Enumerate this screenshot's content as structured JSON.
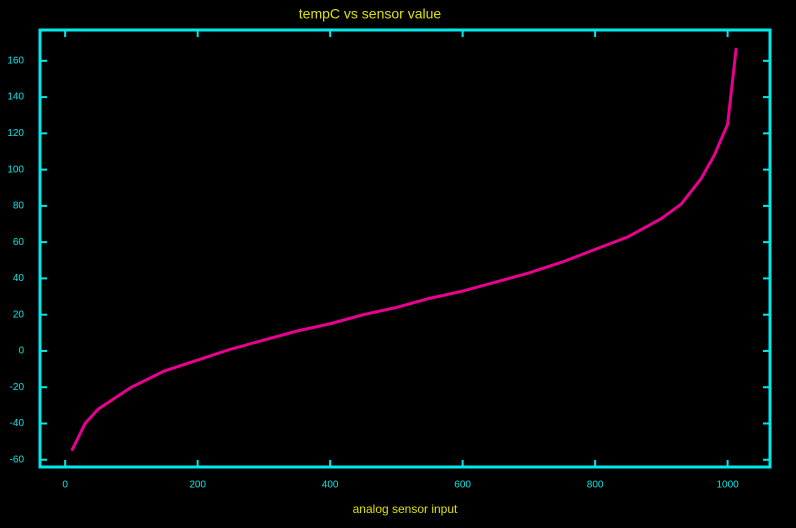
{
  "chart_data": {
    "type": "line",
    "title": "tempC vs sensor value",
    "x_label": "analog sensor input",
    "x": [
      10,
      30,
      50,
      100,
      150,
      200,
      250,
      300,
      350,
      400,
      450,
      500,
      550,
      600,
      650,
      700,
      750,
      800,
      850,
      900,
      930,
      960,
      980,
      1000,
      1013
    ],
    "values": [
      -55,
      -40,
      -32,
      -20,
      -11,
      -5,
      1,
      6,
      11,
      15,
      20,
      24,
      29,
      33,
      38,
      43,
      49,
      56,
      63,
      73,
      81,
      95,
      108,
      125,
      167
    ],
    "color": "#e8008f",
    "axis_color": "#00e8e8",
    "title_color": "#e0e000",
    "background": "#000000",
    "xlim": [
      -38,
      1064
    ],
    "ylim": [
      -64,
      177
    ],
    "xticks": [
      0,
      200,
      400,
      600,
      800,
      1000
    ],
    "yticks": [
      -60,
      -40,
      -20,
      0,
      20,
      40,
      60,
      80,
      100,
      120,
      140,
      160
    ]
  }
}
